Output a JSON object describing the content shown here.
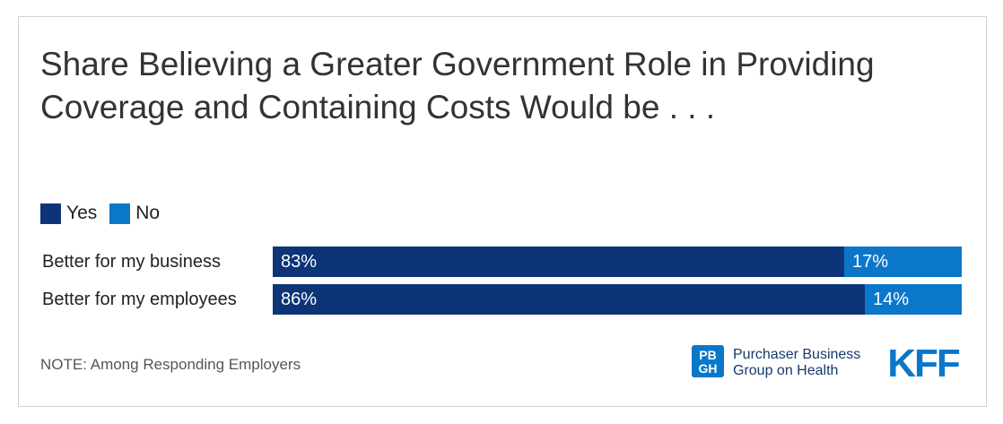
{
  "chart_data": {
    "type": "bar",
    "orientation": "horizontal",
    "stacked": true,
    "title": "Share Believing a Greater Government Role in Providing Coverage and Containing Costs Would be . . .",
    "categories": [
      "Better for my business",
      "Better for my employees"
    ],
    "series": [
      {
        "name": "Yes",
        "values": [
          83,
          86
        ],
        "labels": [
          "83%",
          "86%"
        ],
        "color": "#0d3477"
      },
      {
        "name": "No",
        "values": [
          17,
          14
        ],
        "labels": [
          "17%",
          "14%"
        ],
        "color": "#0b77c9"
      }
    ],
    "xlim": [
      0,
      100
    ],
    "grid": false,
    "legend": "top-left"
  },
  "note": "NOTE: Among Responding Employers",
  "logos": {
    "pbgh": {
      "icon": "pbgh-logo-icon",
      "mark_top": "PB",
      "mark_bottom": "GH",
      "line1": "Purchaser Business",
      "line2": "Group on Health",
      "color": "#0b77c9"
    },
    "kff": {
      "icon": "kff-logo-icon",
      "text": "KFF",
      "color": "#0b77c9"
    }
  }
}
